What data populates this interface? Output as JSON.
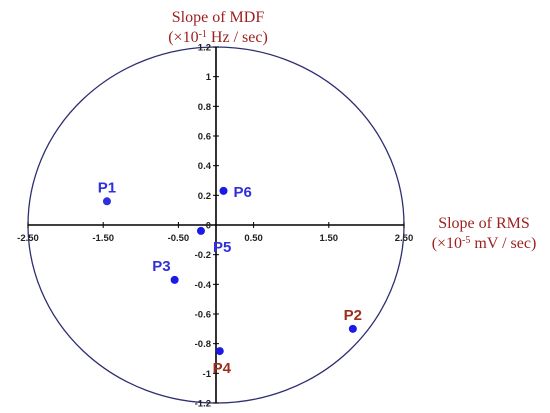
{
  "chart_data": {
    "type": "scatter",
    "title": "",
    "xlabel": {
      "main": "Slope of RMS",
      "unit_prefix": "(×10",
      "unit_exp": "-5",
      "unit_suffix": " mV / sec)"
    },
    "ylabel": {
      "main": "Slope of MDF",
      "unit_prefix": "(×10",
      "unit_exp": "-1",
      "unit_suffix": " Hz / sec)"
    },
    "xlim": [
      -2.5,
      2.5
    ],
    "ylim": [
      -1.2,
      1.2
    ],
    "x_ticks": [
      "-2.50",
      "-1.50",
      "-0.50",
      "0.50",
      "1.50",
      "2.50"
    ],
    "x_tick_values": [
      -2.5,
      -1.5,
      -0.5,
      0.5,
      1.5,
      2.5
    ],
    "y_ticks": [
      "1.2",
      "1",
      "0.8",
      "0.6",
      "0.4",
      "0.2",
      "0",
      "-0.2",
      "-0.4",
      "-0.6",
      "-0.8",
      "-1",
      "-1.2"
    ],
    "y_tick_values": [
      1.2,
      1,
      0.8,
      0.6,
      0.4,
      0.2,
      0,
      -0.2,
      -0.4,
      -0.6,
      -0.8,
      -1,
      -1.2
    ],
    "points": [
      {
        "label": "P1",
        "x": -1.45,
        "y": 0.16,
        "color": "#2f2fdc",
        "label_color": "#2f2fdc",
        "label_pos": "above"
      },
      {
        "label": "P2",
        "x": 1.82,
        "y": -0.7,
        "color": "#1a1ae6",
        "label_color": "#9c2f1c",
        "label_pos": "above"
      },
      {
        "label": "P3",
        "x": -0.55,
        "y": -0.37,
        "color": "#1a1ae6",
        "label_color": "#2f2fdc",
        "label_pos": "above-left"
      },
      {
        "label": "P4",
        "x": 0.05,
        "y": -0.85,
        "color": "#1a1ae6",
        "label_color": "#9c2f1c",
        "label_pos": "below"
      },
      {
        "label": "P5",
        "x": -0.2,
        "y": -0.04,
        "color": "#1a1ae6",
        "label_color": "#2f2fdc",
        "label_pos": "below-right"
      },
      {
        "label": "P6",
        "x": 0.1,
        "y": 0.23,
        "color": "#1a1ae6",
        "label_color": "#2f2fdc",
        "label_pos": "right"
      }
    ],
    "circle": {
      "color": "#2e2e73"
    },
    "axis_color": "#000000",
    "axis_title_color": "#9c1f1f",
    "grid": false,
    "legend": "none"
  }
}
